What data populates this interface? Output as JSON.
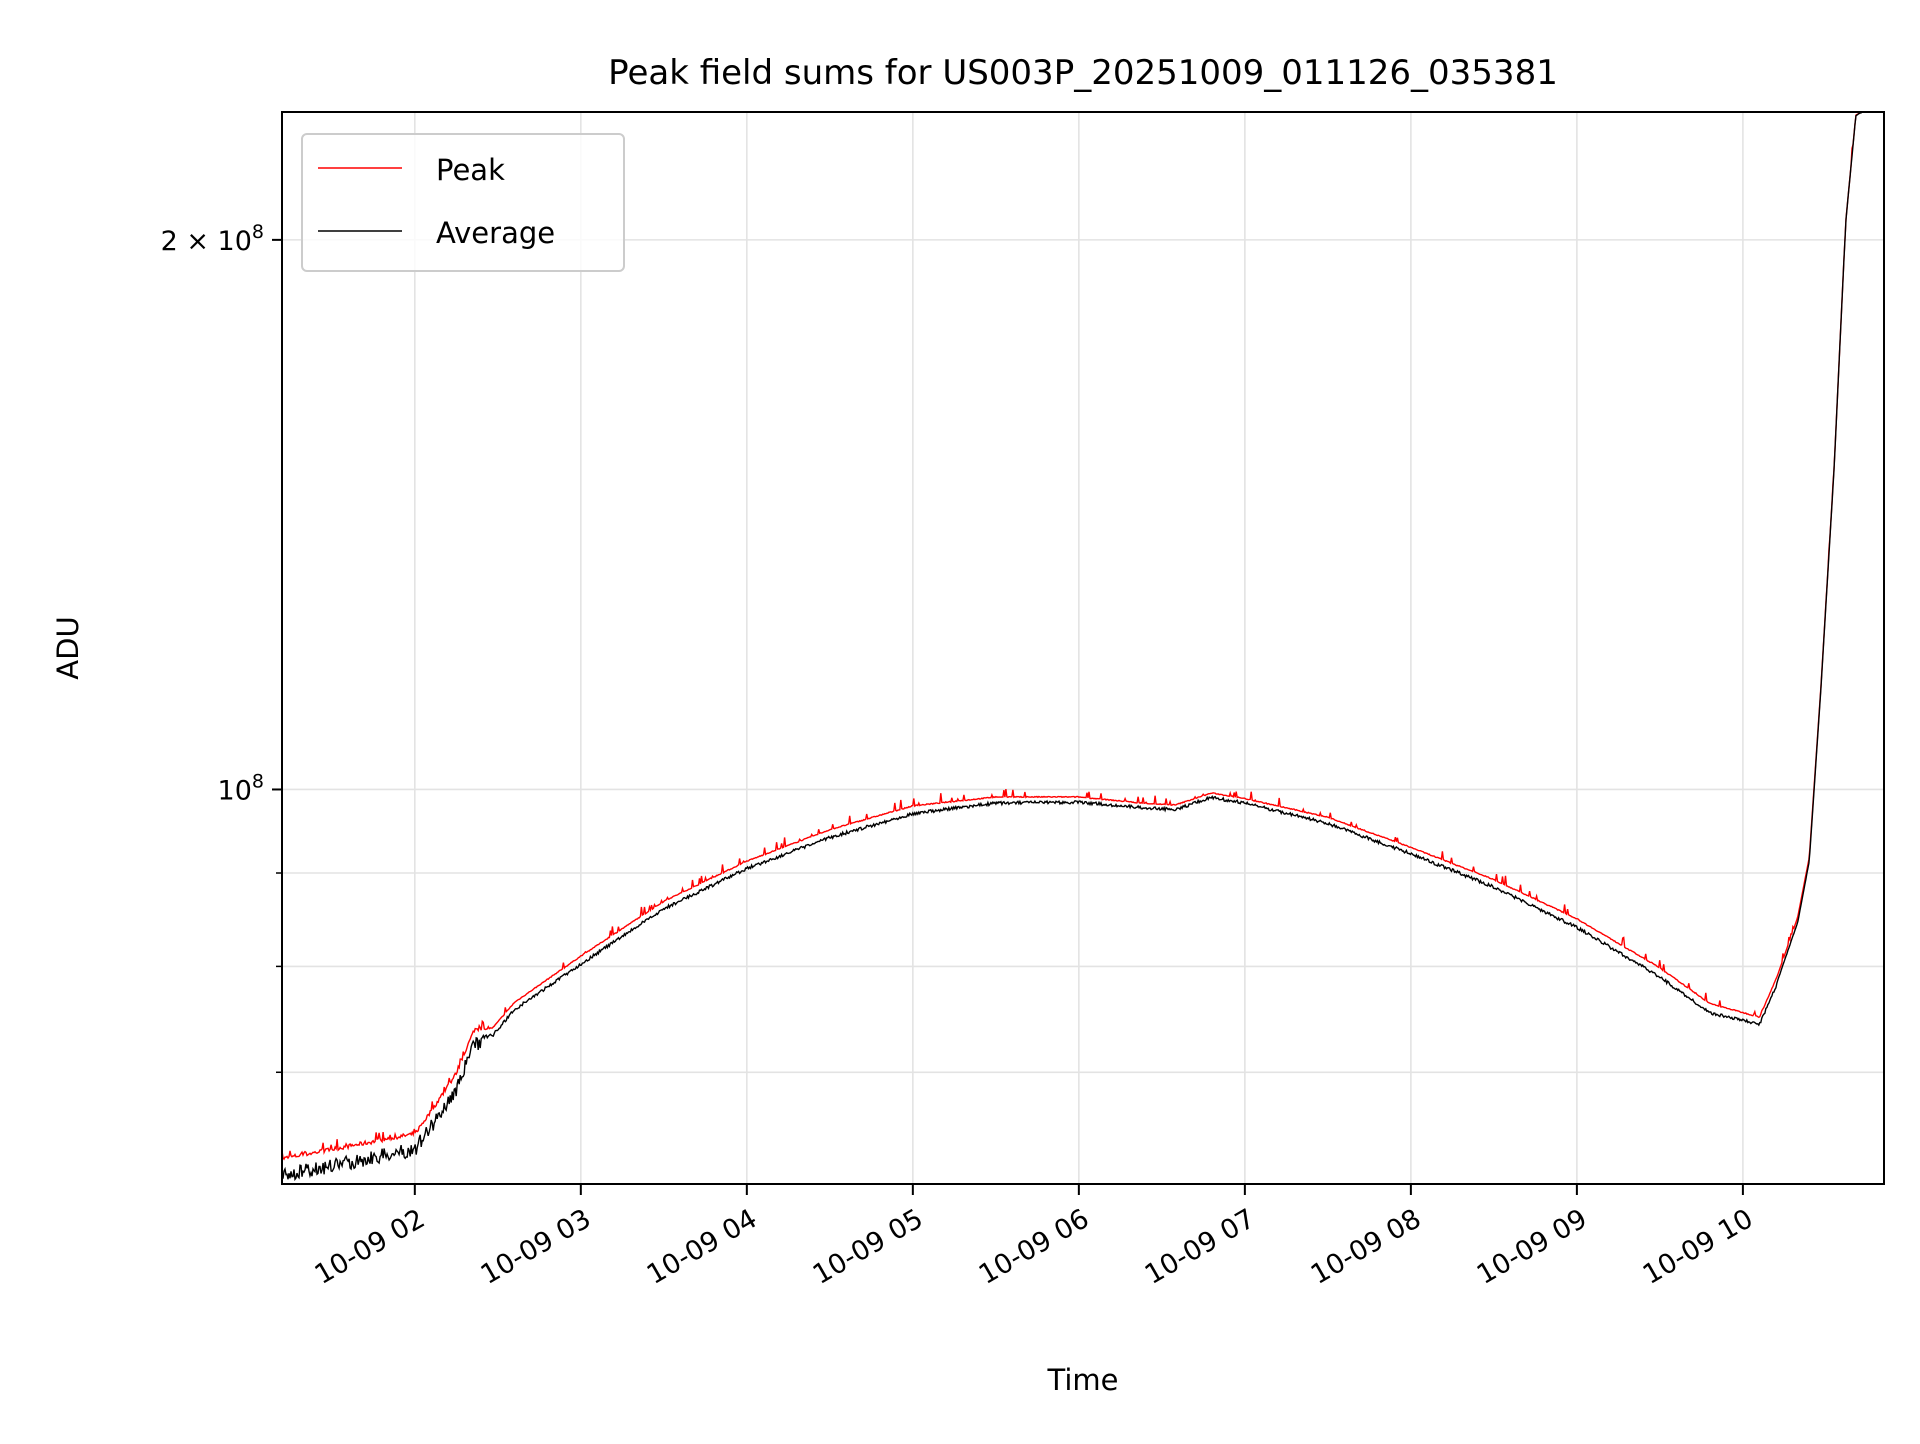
{
  "chart_data": {
    "type": "line",
    "title": "Peak field sums for US003P_20251009_011126_035381",
    "xlabel": "Time",
    "ylabel": "ADU",
    "x_unit": "hour of 2025-10-09",
    "xlim": [
      1.2,
      10.85
    ],
    "ylim": [
      60800000,
      235000000
    ],
    "yscale": "log",
    "grid": true,
    "legend_position": "top-left",
    "x_ticks": [
      {
        "value": 2,
        "label": "10-09 02"
      },
      {
        "value": 3,
        "label": "10-09 03"
      },
      {
        "value": 4,
        "label": "10-09 04"
      },
      {
        "value": 5,
        "label": "10-09 05"
      },
      {
        "value": 6,
        "label": "10-09 06"
      },
      {
        "value": 7,
        "label": "10-09 07"
      },
      {
        "value": 8,
        "label": "10-09 08"
      },
      {
        "value": 9,
        "label": "10-09 09"
      },
      {
        "value": 10,
        "label": "10-09 10"
      }
    ],
    "y_ticks": [
      {
        "value": 100000000,
        "base": "10",
        "exp": "8",
        "prefix": ""
      },
      {
        "value": 200000000,
        "base": "10",
        "exp": "8",
        "prefix": "2 × "
      }
    ],
    "y_minor_ticks": [
      70000000,
      80000000,
      90000000
    ],
    "x": [
      1.2,
      2.0,
      2.1,
      2.245,
      2.36,
      2.47,
      2.6,
      3.0,
      3.5,
      4.0,
      4.5,
      5.0,
      5.5,
      6.0,
      6.4,
      6.58,
      6.8,
      7.0,
      7.5,
      8.0,
      8.5,
      9.0,
      9.5,
      9.8,
      10.1,
      10.2,
      10.33,
      10.4,
      10.47,
      10.55,
      10.62,
      10.68,
      10.75,
      10.85
    ],
    "series": [
      {
        "name": "Peak",
        "color": "#ff0000",
        "values": [
          62600000,
          64600000,
          66500000,
          69600000,
          73700000,
          74000000,
          76400000,
          81000000,
          86800000,
          91300000,
          95000000,
          97900000,
          99000000,
          99000000,
          98200000,
          98000000,
          99500000,
          98800000,
          96500000,
          92900000,
          89200000,
          84900000,
          79800000,
          76300000,
          75000000,
          78700000,
          85100000,
          91800000,
          113800000,
          150300000,
          205000000,
          234000000,
          236000000,
          236000000
        ]
      },
      {
        "name": "Average",
        "color": "#000000",
        "values": [
          62000000,
          64100000,
          66000000,
          69000000,
          73200000,
          73500000,
          75900000,
          80400000,
          86200000,
          90700000,
          94300000,
          97200000,
          98500000,
          98600000,
          97900000,
          97700000,
          99200000,
          98500000,
          96000000,
          92400000,
          88600000,
          84200000,
          79100000,
          75600000,
          74500000,
          78200000,
          84600000,
          91400000,
          113600000,
          150200000,
          205000000,
          234000000,
          236000000,
          236000000
        ]
      }
    ]
  }
}
